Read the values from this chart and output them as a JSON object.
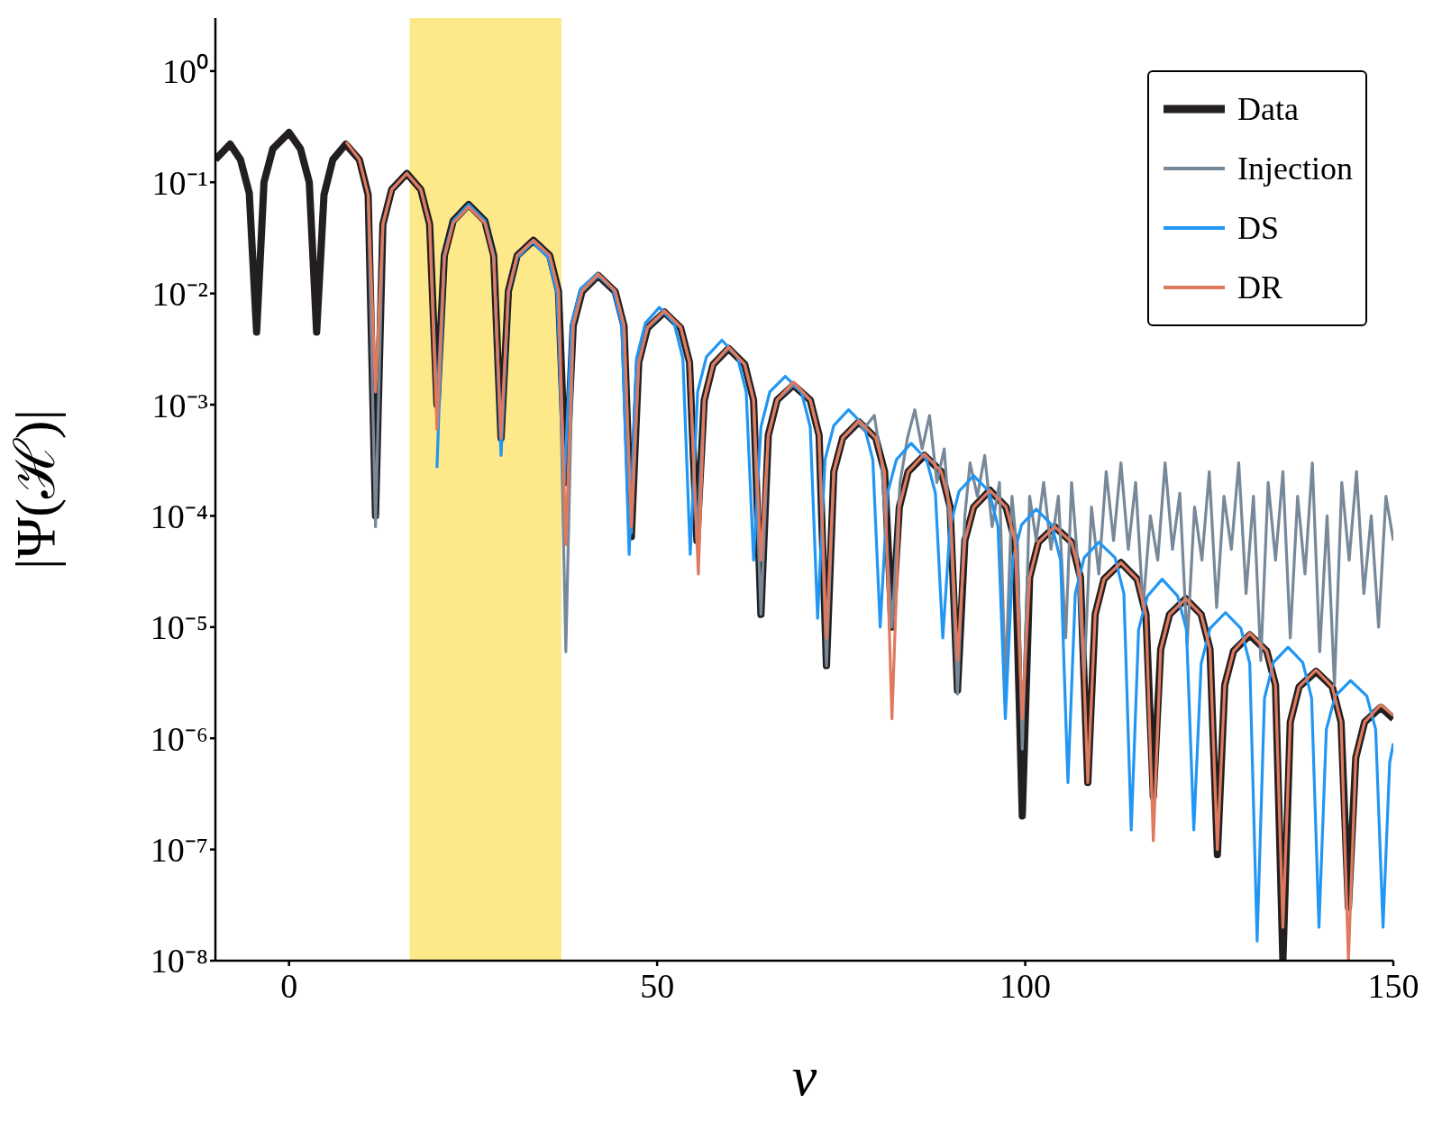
{
  "chart_data": {
    "type": "line",
    "xlabel": "v",
    "ylabel": "|Ψ(ℋ)|",
    "xlim": [
      -10,
      150
    ],
    "xticks": [
      0,
      50,
      100,
      150
    ],
    "ylim": [
      1e-08,
      3
    ],
    "log": true,
    "yticks": [
      {
        "value": 1e-08,
        "label": "10⁻⁸"
      },
      {
        "value": 1e-07,
        "label": "10⁻⁷"
      },
      {
        "value": 1e-06,
        "label": "10⁻⁶"
      },
      {
        "value": 1e-05,
        "label": "10⁻⁵"
      },
      {
        "value": 0.0001,
        "label": "10⁻⁴"
      },
      {
        "value": 0.001,
        "label": "10⁻³"
      },
      {
        "value": 0.01,
        "label": "10⁻²"
      },
      {
        "value": 0.1,
        "label": "10⁻¹"
      },
      {
        "value": 1,
        "label": "10⁰"
      }
    ],
    "grid": false,
    "legend": "top right",
    "marker": "none",
    "line_style": "solid",
    "bands": [
      {
        "axis": "x",
        "from": 16.4,
        "to": 37,
        "color": "#fde98a"
      }
    ],
    "series": [
      {
        "name": "Data",
        "color": "#231f20",
        "x": [
          -10,
          -8,
          -6.6,
          -5.4,
          -4.4,
          -3.4,
          -2.2,
          0,
          1.55,
          2.75,
          3.75,
          4.75,
          5.95,
          7.7,
          9.55,
          10.75,
          11.75,
          12.75,
          13.95,
          16,
          17.9,
          19.1,
          20.1,
          21.1,
          22.3,
          24.4,
          26.6,
          27.8,
          28.8,
          29.8,
          31,
          33.2,
          35.4,
          36.6,
          37.6,
          38.6,
          39.8,
          42,
          44.3,
          45.5,
          46.5,
          47.5,
          48.7,
          51,
          53.2,
          54.4,
          55.4,
          56.4,
          57.6,
          59.7,
          61.9,
          63.1,
          64.1,
          65.1,
          66.3,
          68.5,
          70.8,
          72,
          73,
          74,
          75.2,
          77.4,
          79.7,
          80.9,
          81.9,
          82.9,
          84.1,
          86.3,
          88.6,
          89.8,
          90.8,
          91.8,
          93,
          95.2,
          97.4,
          98.6,
          99.6,
          100.6,
          101.8,
          104,
          106.3,
          107.5,
          108.5,
          109.5,
          110.7,
          113,
          115.2,
          116.4,
          117.4,
          118.4,
          119.6,
          121.8,
          123.9,
          125.1,
          126.1,
          127.1,
          128.3,
          130.5,
          132.8,
          134,
          135,
          136,
          137.2,
          139.5,
          141.7,
          142.9,
          143.9,
          144.9,
          146.1,
          148.3,
          150
        ],
        "values": [
          0.16,
          0.22,
          0.16,
          0.08,
          0.0045,
          0.1,
          0.2,
          0.28,
          0.2,
          0.1,
          0.0045,
          0.077,
          0.16,
          0.22,
          0.16,
          0.077,
          0.0001,
          0.042,
          0.086,
          0.12,
          0.086,
          0.042,
          0.001,
          0.022,
          0.045,
          0.063,
          0.045,
          0.022,
          0.0005,
          0.0105,
          0.022,
          0.03,
          0.022,
          0.0105,
          0.0002,
          0.0051,
          0.0104,
          0.0145,
          0.0104,
          0.0051,
          6.5e-05,
          0.0024,
          0.0049,
          0.0068,
          0.0049,
          0.0024,
          6e-05,
          0.0011,
          0.0023,
          0.0032,
          0.0023,
          0.0011,
          1.3e-05,
          0.00053,
          0.0011,
          0.0015,
          0.0011,
          0.00053,
          4.5e-06,
          0.00025,
          0.0005,
          0.0007,
          0.0005,
          0.00025,
          1e-05,
          0.00012,
          0.00025,
          0.00035,
          0.00025,
          0.00012,
          2.7e-06,
          6e-05,
          0.00012,
          0.00017,
          0.00012,
          6e-05,
          2e-07,
          2.8e-05,
          5.8e-05,
          8e-05,
          5.8e-05,
          2.8e-05,
          4e-07,
          1.3e-05,
          2.7e-05,
          3.8e-05,
          2.7e-05,
          1.3e-05,
          3e-07,
          6.3e-06,
          1.3e-05,
          1.8e-05,
          1.3e-05,
          6.3e-06,
          9e-08,
          3e-06,
          6.1e-06,
          8.5e-06,
          6.1e-06,
          3e-06,
          1e-08,
          1.4e-06,
          2.9e-06,
          4e-06,
          2.9e-06,
          1.4e-06,
          3e-08,
          6.7e-07,
          1.4e-06,
          1.9e-06,
          1.5e-06
        ]
      },
      {
        "name": "Injection",
        "color": "#778899",
        "x": [
          10.75,
          11.75,
          12.75,
          13.95,
          16,
          17.9,
          19.1,
          20.1,
          21.1,
          22.3,
          24.4,
          26.6,
          27.8,
          28.8,
          29.8,
          31,
          33.2,
          35.4,
          36.6,
          37.6,
          38.6,
          39.8,
          42,
          44.3,
          45.5,
          46.5,
          47.5,
          48.7,
          51,
          53.2,
          54.4,
          55.4,
          56.4,
          57.6,
          59.7,
          61.9,
          63.1,
          64.1,
          65.1,
          66.3,
          68.5,
          70.8,
          72,
          73,
          74,
          75.2,
          77.4,
          78,
          79.5,
          80.5,
          81.9,
          83,
          84,
          85,
          86,
          87,
          88,
          89,
          90,
          90.8,
          91.8,
          92.5,
          93.5,
          94.5,
          95.5,
          96.5,
          97.3,
          98.2,
          99,
          99.6,
          100.6,
          101.5,
          102.5,
          103.5,
          104.5,
          105.5,
          106.3,
          107,
          108,
          109,
          110,
          111,
          112,
          113,
          114,
          115,
          116,
          117,
          118,
          119,
          120,
          121,
          122,
          123,
          124,
          125,
          126,
          127,
          128,
          129,
          130,
          131,
          132,
          133,
          134,
          135,
          136,
          137,
          138,
          139,
          140,
          141,
          142,
          143,
          144,
          145,
          146,
          147,
          148,
          149,
          150
        ],
        "values": [
          0.077,
          8e-05,
          0.042,
          0.086,
          0.12,
          0.086,
          0.042,
          0.001,
          0.022,
          0.045,
          0.063,
          0.045,
          0.022,
          0.0005,
          0.0105,
          0.022,
          0.03,
          0.022,
          0.0105,
          6e-06,
          0.0051,
          0.0104,
          0.0145,
          0.0104,
          0.0051,
          7e-05,
          0.0024,
          0.0049,
          0.0068,
          0.0049,
          0.0024,
          6e-05,
          0.0011,
          0.0023,
          0.0032,
          0.0023,
          0.0011,
          1.3e-05,
          0.00053,
          0.0011,
          0.0015,
          0.0011,
          0.00053,
          4.5e-06,
          0.00025,
          0.0005,
          0.0007,
          0.0006,
          0.0008,
          0.0003,
          1e-05,
          0.0002,
          0.0005,
          0.0009,
          0.0004,
          0.0008,
          0.0002,
          0.0004,
          5e-05,
          2.5e-06,
          0.0001,
          0.0003,
          0.00015,
          0.00035,
          8e-05,
          0.0002,
          3e-06,
          0.00015,
          4e-05,
          8e-07,
          0.00015,
          6e-05,
          0.0002,
          5e-05,
          0.00015,
          8e-06,
          0.0002,
          5e-05,
          3.5e-06,
          0.00012,
          3e-05,
          0.00025,
          6e-05,
          0.0003,
          5e-05,
          0.0002,
          1.5e-05,
          0.0001,
          4e-05,
          0.0003,
          5e-05,
          0.00016,
          7e-06,
          0.00012,
          4e-05,
          0.00025,
          1.5e-05,
          0.00015,
          5e-05,
          0.0003,
          2e-05,
          0.00015,
          5e-06,
          0.0002,
          4e-05,
          0.00025,
          8e-06,
          0.00015,
          3e-05,
          0.0003,
          6e-06,
          0.0001,
          3e-06,
          0.0002,
          4e-05,
          0.00025,
          2e-05,
          0.0001,
          1e-05,
          0.00015,
          6e-05
        ]
      },
      {
        "name": "DS",
        "color": "#2196f3",
        "x": [
          20.1,
          21.1,
          22.3,
          24.4,
          26.6,
          27.8,
          28.8,
          29.8,
          31,
          33.1,
          35.2,
          36.4,
          37.4,
          38.4,
          39.6,
          41.8,
          44,
          45.2,
          46.2,
          47.2,
          48.4,
          50.3,
          52.3,
          53.5,
          54.5,
          55.5,
          56.7,
          58.8,
          60.9,
          62.1,
          63.1,
          64.1,
          65.3,
          67.4,
          69.6,
          70.8,
          71.8,
          72.8,
          74,
          76,
          78.1,
          79.3,
          80.3,
          81.3,
          82.5,
          84.5,
          86.6,
          87.8,
          88.8,
          89.8,
          91,
          93,
          95.1,
          96.3,
          97.3,
          98.3,
          99.5,
          101.5,
          103.6,
          104.8,
          105.8,
          106.8,
          108,
          110,
          112.2,
          113.4,
          114.4,
          115.4,
          116.6,
          118.6,
          120.7,
          121.9,
          122.9,
          123.9,
          125.1,
          127.2,
          129.3,
          130.5,
          131.5,
          132.5,
          133.7,
          135.7,
          137.7,
          138.9,
          139.9,
          140.9,
          142.1,
          144.2,
          146.4,
          147.6,
          148.6,
          149.5,
          150
        ],
        "values": [
          0.00027,
          0.022,
          0.045,
          0.063,
          0.045,
          0.022,
          0.00035,
          0.0102,
          0.021,
          0.029,
          0.021,
          0.0102,
          0.0002,
          0.0053,
          0.011,
          0.015,
          0.011,
          0.0053,
          4.5e-05,
          0.0026,
          0.0054,
          0.0075,
          0.0054,
          0.0026,
          4.5e-05,
          0.0013,
          0.0027,
          0.0038,
          0.0027,
          0.0013,
          4e-05,
          0.00063,
          0.0013,
          0.0018,
          0.0013,
          0.00063,
          1.2e-05,
          0.00032,
          0.00065,
          0.0009,
          0.00065,
          0.00032,
          1e-05,
          0.00016,
          0.00032,
          0.00045,
          0.00032,
          0.00016,
          8e-06,
          8e-05,
          0.000166,
          0.00023,
          0.000166,
          8e-05,
          1.5e-06,
          4e-05,
          8.3e-05,
          0.000115,
          8.3e-05,
          4e-05,
          4e-07,
          2e-05,
          4.2e-05,
          5.8e-05,
          4.2e-05,
          2e-05,
          1.5e-07,
          9.5e-06,
          1.9e-05,
          2.7e-05,
          1.9e-05,
          9.5e-06,
          1.5e-07,
          4.7e-06,
          9.7e-06,
          1.35e-05,
          9.7e-06,
          4.7e-06,
          1.5e-08,
          2.3e-06,
          4.8e-06,
          6.6e-06,
          4.8e-06,
          2.3e-06,
          2e-08,
          1.2e-06,
          2.4e-06,
          3.3e-06,
          2.4e-06,
          1.2e-06,
          2e-08,
          6e-07,
          9e-07
        ]
      },
      {
        "name": "DR",
        "color": "#e07a5f",
        "x": [
          7.75,
          9.55,
          10.75,
          11.75,
          12.75,
          13.95,
          16,
          17.9,
          19.1,
          20.1,
          21.1,
          22.3,
          24.4,
          26.6,
          27.8,
          28.8,
          29.8,
          31,
          33.2,
          35.4,
          36.6,
          37.6,
          38.6,
          39.8,
          42,
          44.3,
          45.5,
          46.5,
          47.5,
          48.7,
          51,
          53.2,
          54.4,
          55.6,
          56.4,
          57.6,
          59.7,
          61.9,
          63.1,
          64.1,
          65.1,
          66.3,
          68.5,
          70.8,
          72,
          73,
          74,
          75.2,
          77.4,
          79.7,
          80.9,
          81.9,
          82.9,
          84.1,
          86.3,
          88.6,
          89.8,
          90.8,
          91.8,
          93,
          95.2,
          97.4,
          98.6,
          99.6,
          100.6,
          101.8,
          104,
          106.3,
          107.5,
          108.5,
          109.5,
          110.7,
          113,
          115.2,
          116.4,
          117.4,
          118.4,
          119.6,
          121.8,
          123.9,
          125.1,
          126.1,
          127.1,
          128.3,
          130.5,
          132.8,
          134,
          135,
          136,
          137.2,
          139.5,
          141.7,
          142.9,
          143.9,
          144.9,
          146.1,
          148.3,
          150
        ],
        "values": [
          0.23,
          0.16,
          0.077,
          0.0013,
          0.042,
          0.086,
          0.12,
          0.086,
          0.042,
          0.0006,
          0.021,
          0.043,
          0.06,
          0.043,
          0.021,
          0.0005,
          0.0105,
          0.022,
          0.03,
          0.022,
          0.0105,
          5.5e-05,
          0.0052,
          0.0106,
          0.015,
          0.0106,
          0.0052,
          8e-05,
          0.0024,
          0.005,
          0.007,
          0.005,
          0.0024,
          3e-05,
          0.0011,
          0.0023,
          0.0033,
          0.0023,
          0.0011,
          4e-05,
          0.00053,
          0.0011,
          0.0016,
          0.0011,
          0.00053,
          8e-06,
          0.00025,
          0.0005,
          0.00072,
          0.0005,
          0.00025,
          1.5e-06,
          0.00012,
          0.00025,
          0.00036,
          0.00025,
          0.00012,
          5e-06,
          6e-05,
          0.00012,
          0.00017,
          0.00012,
          6e-05,
          1.5e-06,
          2.8e-05,
          5.8e-05,
          8e-05,
          5.8e-05,
          2.8e-05,
          4e-07,
          1.3e-05,
          2.7e-05,
          3.8e-05,
          2.7e-05,
          1.3e-05,
          1.2e-07,
          6.3e-06,
          1.3e-05,
          1.8e-05,
          1.3e-05,
          6.3e-06,
          1e-07,
          3e-06,
          6.1e-06,
          8.8e-06,
          6.1e-06,
          3e-06,
          2e-08,
          1.4e-06,
          2.9e-06,
          4.1e-06,
          2.9e-06,
          1.4e-06,
          1e-08,
          6.7e-07,
          1.4e-06,
          2e-06,
          1.6e-06
        ]
      }
    ]
  }
}
